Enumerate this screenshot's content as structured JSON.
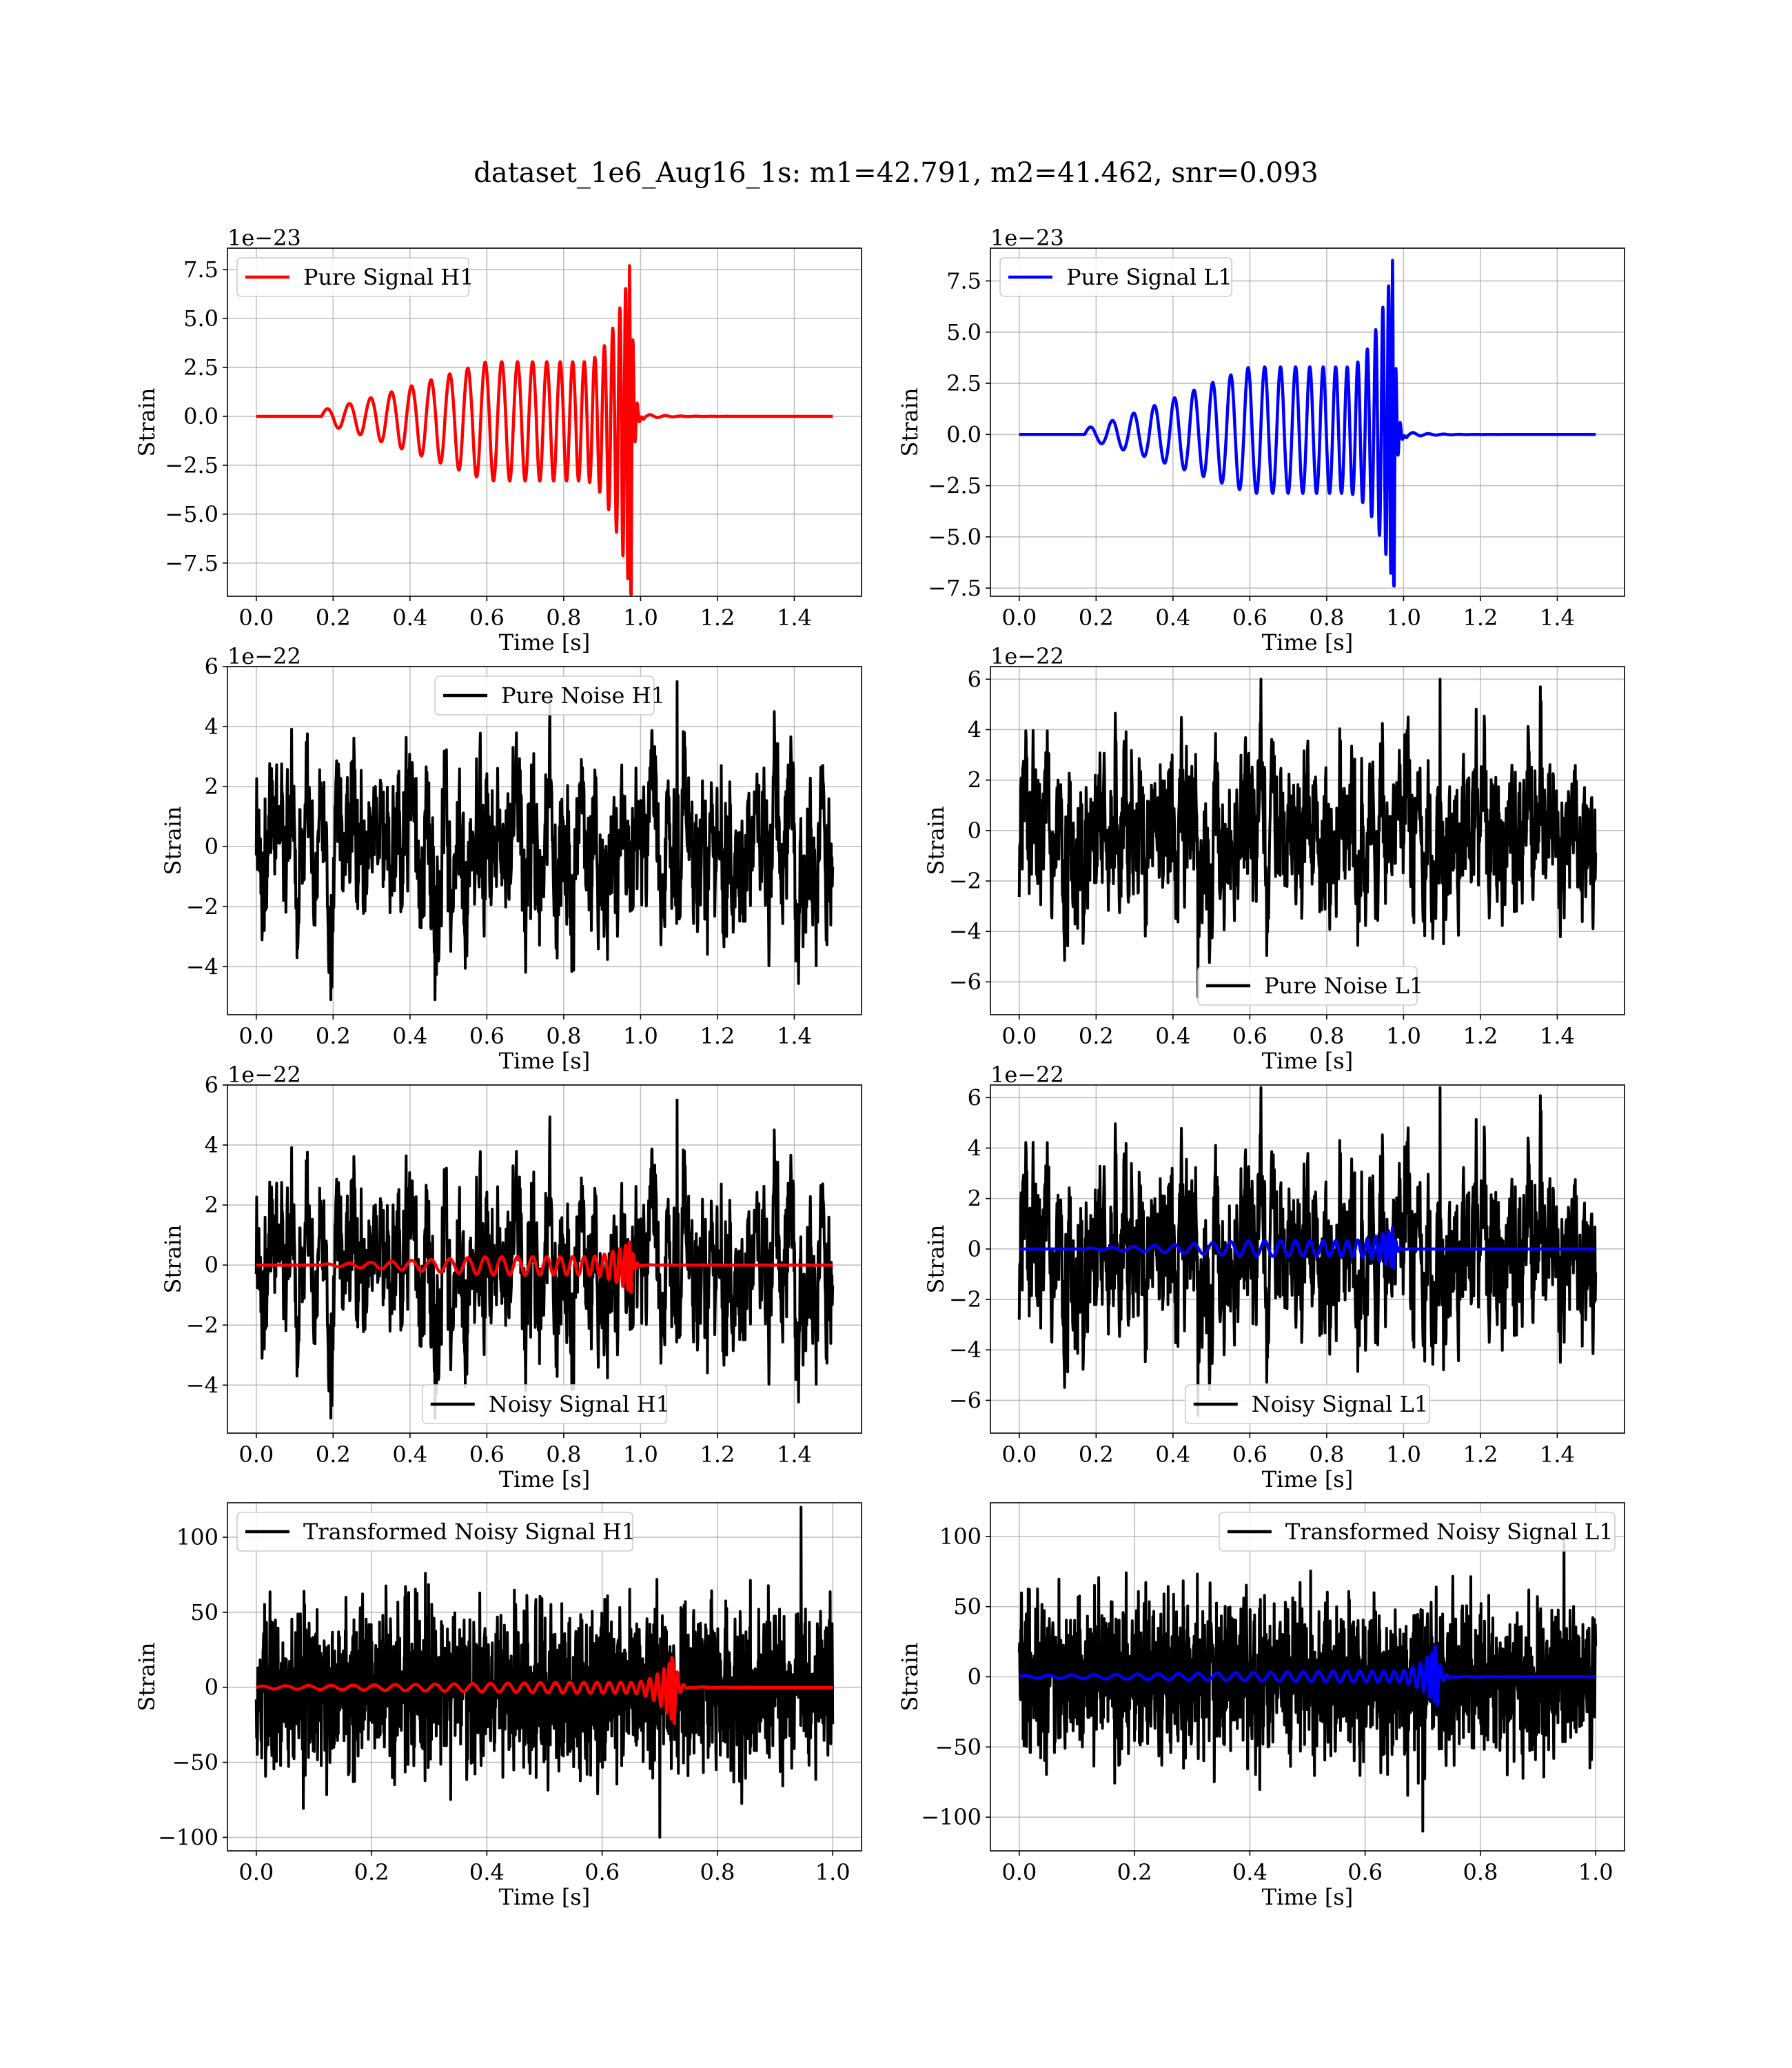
{
  "figure": {
    "suptitle": "dataset_1e6_Aug16_1s: m1=42.791, m2=41.462, snr=0.093"
  },
  "chart_data": [
    {
      "id": "pure-signal-h1",
      "type": "line",
      "xlabel": "Time [s]",
      "ylabel": "Strain",
      "offset_text": "1e−23",
      "xlim": [
        -0.075,
        1.575
      ],
      "ylim": [
        -9.2,
        8.6
      ],
      "xticks": [
        0.0,
        0.2,
        0.4,
        0.6,
        0.8,
        1.0,
        1.2,
        1.4
      ],
      "xtick_labels": [
        "0.0",
        "0.2",
        "0.4",
        "0.6",
        "0.8",
        "1.0",
        "1.2",
        "1.4"
      ],
      "yticks": [
        -7.5,
        -5.0,
        -2.5,
        0.0,
        2.5,
        5.0,
        7.5
      ],
      "ytick_labels": [
        "−7.5",
        "−5.0",
        "−2.5",
        "0.0",
        "2.5",
        "5.0",
        "7.5"
      ],
      "grid": true,
      "legend_location": "upper-left",
      "series": [
        {
          "name": "Pure Signal H1",
          "color": "#ff0000",
          "kind": "chirp",
          "x_start": 0.0,
          "x_end": 1.5,
          "t_start": 0.17,
          "t_merge": 0.975,
          "peak_pos": 7.7,
          "peak_neg": -9.1,
          "amp_start": 0.4,
          "amp_plateau": 3.3,
          "plateau_from": 0.6,
          "plateau_to": 0.85,
          "cycles": 22
        }
      ]
    },
    {
      "id": "pure-signal-l1",
      "type": "line",
      "xlabel": "Time [s]",
      "ylabel": "Strain",
      "offset_text": "1e−23",
      "xlim": [
        -0.075,
        1.575
      ],
      "ylim": [
        -7.9,
        9.1
      ],
      "xticks": [
        0.0,
        0.2,
        0.4,
        0.6,
        0.8,
        1.0,
        1.2,
        1.4
      ],
      "xtick_labels": [
        "0.0",
        "0.2",
        "0.4",
        "0.6",
        "0.8",
        "1.0",
        "1.2",
        "1.4"
      ],
      "yticks": [
        -7.5,
        -5.0,
        -2.5,
        0.0,
        2.5,
        5.0,
        7.5
      ],
      "ytick_labels": [
        "−7.5",
        "−5.0",
        "−2.5",
        "0.0",
        "2.5",
        "5.0",
        "7.5"
      ],
      "grid": true,
      "legend_location": "upper-left",
      "series": [
        {
          "name": "Pure Signal L1",
          "color": "#0000ff",
          "kind": "chirp",
          "x_start": 0.0,
          "x_end": 1.5,
          "t_start": 0.17,
          "t_merge": 0.975,
          "peak_pos": 8.5,
          "peak_neg": -7.4,
          "amp_start": 0.3,
          "amp_plateau": 3.3,
          "plateau_from": 0.6,
          "plateau_to": 0.85,
          "cycles": 22
        }
      ]
    },
    {
      "id": "pure-noise-h1",
      "type": "line",
      "xlabel": "Time [s]",
      "ylabel": "Strain",
      "offset_text": "1e−22",
      "xlim": [
        -0.075,
        1.575
      ],
      "ylim": [
        -5.6,
        6.0
      ],
      "xticks": [
        0.0,
        0.2,
        0.4,
        0.6,
        0.8,
        1.0,
        1.2,
        1.4
      ],
      "xtick_labels": [
        "0.0",
        "0.2",
        "0.4",
        "0.6",
        "0.8",
        "1.0",
        "1.2",
        "1.4"
      ],
      "yticks": [
        -4,
        -2,
        0,
        2,
        4,
        6
      ],
      "ytick_labels": [
        "−4",
        "−2",
        "0",
        "2",
        "4",
        "6"
      ],
      "grid": true,
      "legend_location": "upper-center",
      "series": [
        {
          "name": "Pure Noise H1",
          "color": "#000000",
          "kind": "noise",
          "x_start": 0.0,
          "x_end": 1.5,
          "seed": 11,
          "max": 5.5,
          "min": -5.1
        }
      ]
    },
    {
      "id": "pure-noise-l1",
      "type": "line",
      "xlabel": "Time [s]",
      "ylabel": "Strain",
      "offset_text": "1e−22",
      "xlim": [
        -0.075,
        1.575
      ],
      "ylim": [
        -7.3,
        6.5
      ],
      "xticks": [
        0.0,
        0.2,
        0.4,
        0.6,
        0.8,
        1.0,
        1.2,
        1.4
      ],
      "xtick_labels": [
        "0.0",
        "0.2",
        "0.4",
        "0.6",
        "0.8",
        "1.0",
        "1.2",
        "1.4"
      ],
      "yticks": [
        -6,
        -4,
        -2,
        0,
        2,
        4,
        6
      ],
      "ytick_labels": [
        "−6",
        "−4",
        "−2",
        "0",
        "2",
        "4",
        "6"
      ],
      "grid": true,
      "legend_location": "lower-center",
      "series": [
        {
          "name": "Pure Noise L1",
          "color": "#000000",
          "kind": "noise",
          "x_start": 0.0,
          "x_end": 1.5,
          "seed": 23,
          "max": 6.0,
          "min": -6.6
        }
      ]
    },
    {
      "id": "noisy-signal-h1",
      "type": "line",
      "xlabel": "Time [s]",
      "ylabel": "Strain",
      "offset_text": "1e−22",
      "xlim": [
        -0.075,
        1.575
      ],
      "ylim": [
        -5.6,
        6.0
      ],
      "xticks": [
        0.0,
        0.2,
        0.4,
        0.6,
        0.8,
        1.0,
        1.2,
        1.4
      ],
      "xtick_labels": [
        "0.0",
        "0.2",
        "0.4",
        "0.6",
        "0.8",
        "1.0",
        "1.2",
        "1.4"
      ],
      "yticks": [
        -4,
        -2,
        0,
        2,
        4,
        6
      ],
      "ytick_labels": [
        "−4",
        "−2",
        "0",
        "2",
        "4",
        "6"
      ],
      "grid": true,
      "legend_location": "lower-center",
      "series": [
        {
          "name": "Noisy Signal H1",
          "color": "#000000",
          "kind": "noise",
          "x_start": 0.0,
          "x_end": 1.5,
          "seed": 11,
          "max": 5.5,
          "min": -5.1
        },
        {
          "color": "#ff0000",
          "kind": "chirp",
          "x_start": 0.0,
          "x_end": 1.5,
          "t_start": 0.17,
          "t_merge": 0.975,
          "peak_pos": 0.77,
          "peak_neg": -0.91,
          "amp_start": 0.04,
          "amp_plateau": 0.33,
          "plateau_from": 0.6,
          "plateau_to": 0.85,
          "cycles": 22
        }
      ]
    },
    {
      "id": "noisy-signal-l1",
      "type": "line",
      "xlabel": "Time [s]",
      "ylabel": "Strain",
      "offset_text": "1e−22",
      "xlim": [
        -0.075,
        1.575
      ],
      "ylim": [
        -7.3,
        6.5
      ],
      "xticks": [
        0.0,
        0.2,
        0.4,
        0.6,
        0.8,
        1.0,
        1.2,
        1.4
      ],
      "xtick_labels": [
        "0.0",
        "0.2",
        "0.4",
        "0.6",
        "0.8",
        "1.0",
        "1.2",
        "1.4"
      ],
      "yticks": [
        -6,
        -4,
        -2,
        0,
        2,
        4,
        6
      ],
      "ytick_labels": [
        "−6",
        "−4",
        "−2",
        "0",
        "2",
        "4",
        "6"
      ],
      "grid": true,
      "legend_location": "lower-center",
      "series": [
        {
          "name": "Noisy Signal L1",
          "color": "#000000",
          "kind": "noise",
          "x_start": 0.0,
          "x_end": 1.5,
          "seed": 23,
          "max": 6.4,
          "min": -6.6
        },
        {
          "color": "#0000ff",
          "kind": "chirp",
          "x_start": 0.0,
          "x_end": 1.5,
          "t_start": 0.17,
          "t_merge": 0.975,
          "peak_pos": 0.85,
          "peak_neg": -0.74,
          "amp_start": 0.03,
          "amp_plateau": 0.33,
          "plateau_from": 0.6,
          "plateau_to": 0.85,
          "cycles": 22
        }
      ]
    },
    {
      "id": "transformed-noisy-signal-h1",
      "type": "line",
      "xlabel": "Time [s]",
      "ylabel": "Strain",
      "offset_text": "",
      "xlim": [
        -0.05,
        1.05
      ],
      "ylim": [
        -109,
        123
      ],
      "xticks": [
        0.0,
        0.2,
        0.4,
        0.6,
        0.8,
        1.0
      ],
      "xtick_labels": [
        "0.0",
        "0.2",
        "0.4",
        "0.6",
        "0.8",
        "1.0"
      ],
      "yticks": [
        -100,
        -50,
        0,
        50,
        100
      ],
      "ytick_labels": [
        "−100",
        "−50",
        "0",
        "50",
        "100"
      ],
      "grid": true,
      "legend_location": "upper-left",
      "series": [
        {
          "name": "Transformed Noisy Signal H1",
          "color": "#000000",
          "kind": "whitenoise",
          "x_start": 0.0,
          "x_end": 1.0,
          "seed": 37,
          "max": 120,
          "min": -100
        },
        {
          "color": "#ff0000",
          "kind": "chirp",
          "x_start": 0.0,
          "x_end": 1.0,
          "t_start": 0.0,
          "t_merge": 0.725,
          "peak_pos": 20,
          "peak_neg": -24,
          "amp_start": 1.0,
          "amp_plateau": 4.0,
          "plateau_from": 0.55,
          "plateau_to": 0.65,
          "cycles": 28
        }
      ]
    },
    {
      "id": "transformed-noisy-signal-l1",
      "type": "line",
      "xlabel": "Time [s]",
      "ylabel": "Strain",
      "offset_text": "",
      "xlim": [
        -0.05,
        1.05
      ],
      "ylim": [
        -124,
        124
      ],
      "xticks": [
        0.0,
        0.2,
        0.4,
        0.6,
        0.8,
        1.0
      ],
      "xtick_labels": [
        "0.0",
        "0.2",
        "0.4",
        "0.6",
        "0.8",
        "1.0"
      ],
      "yticks": [
        -100,
        -50,
        0,
        50,
        100
      ],
      "ytick_labels": [
        "−100",
        "−50",
        "0",
        "50",
        "100"
      ],
      "grid": true,
      "legend_location": "upper-right",
      "series": [
        {
          "name": "Transformed Noisy Signal L1",
          "color": "#000000",
          "kind": "whitenoise",
          "x_start": 0.0,
          "x_end": 1.0,
          "seed": 53,
          "max": 102,
          "min": -110
        },
        {
          "color": "#0000ff",
          "kind": "chirp",
          "x_start": 0.0,
          "x_end": 1.0,
          "t_start": 0.0,
          "t_merge": 0.725,
          "peak_pos": 22,
          "peak_neg": -20,
          "amp_start": 1.0,
          "amp_plateau": 4.0,
          "plateau_from": 0.55,
          "plateau_to": 0.65,
          "cycles": 28
        }
      ]
    }
  ]
}
